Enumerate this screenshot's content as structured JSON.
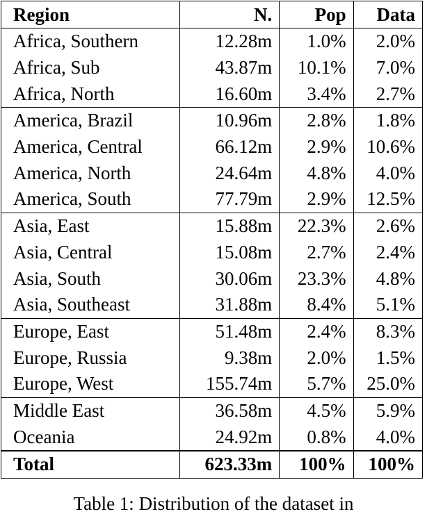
{
  "table": {
    "headers": {
      "region": "Region",
      "n": "N.",
      "pop": "Pop",
      "data": "Data"
    },
    "groups": [
      {
        "rows": [
          {
            "region": "Africa, Southern",
            "n": "12.28m",
            "pop": "1.0%",
            "data": "2.0%"
          },
          {
            "region": "Africa, Sub",
            "n": "43.87m",
            "pop": "10.1%",
            "data": "7.0%"
          },
          {
            "region": "Africa, North",
            "n": "16.60m",
            "pop": "3.4%",
            "data": "2.7%"
          }
        ]
      },
      {
        "rows": [
          {
            "region": "America, Brazil",
            "n": "10.96m",
            "pop": "2.8%",
            "data": "1.8%"
          },
          {
            "region": "America, Central",
            "n": "66.12m",
            "pop": "2.9%",
            "data": "10.6%"
          },
          {
            "region": "America, North",
            "n": "24.64m",
            "pop": "4.8%",
            "data": "4.0%"
          },
          {
            "region": "America, South",
            "n": "77.79m",
            "pop": "2.9%",
            "data": "12.5%"
          }
        ]
      },
      {
        "rows": [
          {
            "region": "Asia, East",
            "n": "15.88m",
            "pop": "22.3%",
            "data": "2.6%"
          },
          {
            "region": "Asia, Central",
            "n": "15.08m",
            "pop": "2.7%",
            "data": "2.4%"
          },
          {
            "region": "Asia, South",
            "n": "30.06m",
            "pop": "23.3%",
            "data": "4.8%"
          },
          {
            "region": "Asia, Southeast",
            "n": "31.88m",
            "pop": "8.4%",
            "data": "5.1%"
          }
        ]
      },
      {
        "rows": [
          {
            "region": "Europe, East",
            "n": "51.48m",
            "pop": "2.4%",
            "data": "8.3%"
          },
          {
            "region": "Europe, Russia",
            "n": "9.38m",
            "pop": "2.0%",
            "data": "1.5%"
          },
          {
            "region": "Europe, West",
            "n": "155.74m",
            "pop": "5.7%",
            "data": "25.0%"
          }
        ]
      },
      {
        "rows": [
          {
            "region": "Middle East",
            "n": "36.58m",
            "pop": "4.5%",
            "data": "5.9%"
          },
          {
            "region": "Oceania",
            "n": "24.92m",
            "pop": "0.8%",
            "data": "4.0%"
          }
        ]
      }
    ],
    "total": {
      "region": "Total",
      "n": "623.33m",
      "pop": "100%",
      "data": "100%"
    }
  },
  "caption": "Table 1: Distribution of the dataset in"
}
